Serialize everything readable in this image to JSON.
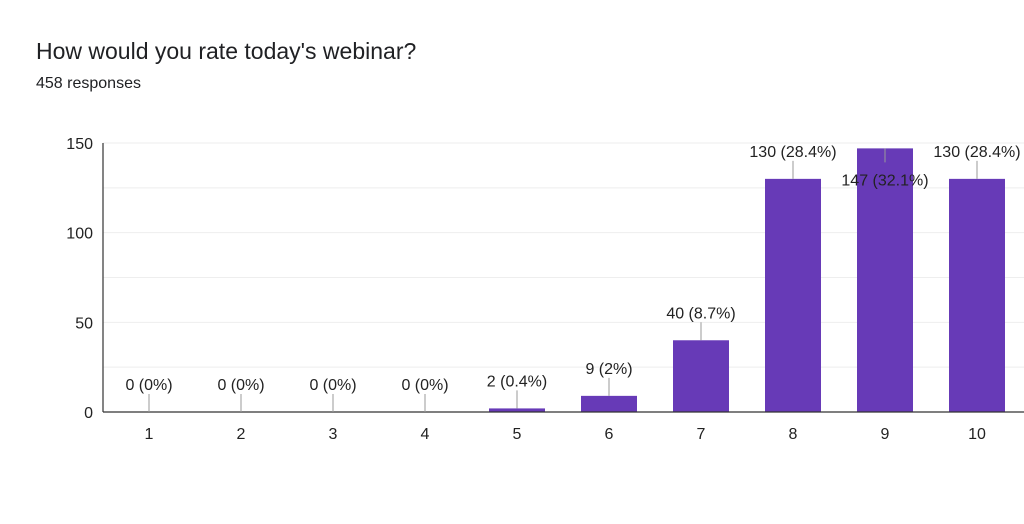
{
  "header": {
    "title": "How would you rate today's webinar?",
    "subtitle": "458 responses"
  },
  "colors": {
    "bar": "#673ab7",
    "grid": "#eeeeee",
    "axis": "#333333",
    "label_line": "#999999"
  },
  "chart_data": {
    "type": "bar",
    "title": "How would you rate today's webinar?",
    "categories": [
      "1",
      "2",
      "3",
      "4",
      "5",
      "6",
      "7",
      "8",
      "9",
      "10"
    ],
    "values": [
      0,
      0,
      0,
      0,
      2,
      9,
      40,
      130,
      147,
      130
    ],
    "data_labels": [
      "0 (0%)",
      "0 (0%)",
      "0 (0%)",
      "0 (0%)",
      "2 (0.4%)",
      "9 (2%)",
      "40 (8.7%)",
      "130 (28.4%)",
      "147 (32.1%)",
      "130 (28.4%)"
    ],
    "y_ticks": [
      "0",
      "50",
      "100",
      "150"
    ],
    "ylim": [
      0,
      150
    ],
    "xlabel": "",
    "ylabel": "",
    "grid": true
  }
}
